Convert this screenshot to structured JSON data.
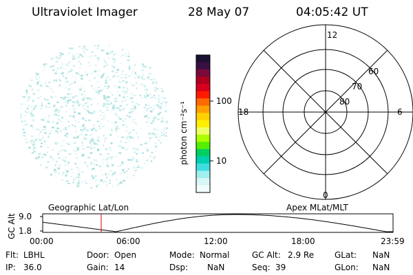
{
  "header": {
    "instrument": "Ultraviolet Imager",
    "date": "28 May 07",
    "time": "04:05:42 UT"
  },
  "colorbar": {
    "label": "photon cm⁻²s⁻¹",
    "ticks": [
      "100",
      "10"
    ],
    "colors": [
      "#1a1030",
      "#3a0f44",
      "#7a0a3a",
      "#b00020",
      "#d8001c",
      "#ff1a00",
      "#ff6a00",
      "#ffa000",
      "#ffd000",
      "#ffee00",
      "#eeff66",
      "#aaff00",
      "#55ee00",
      "#00d060",
      "#00d0b0",
      "#40dde0",
      "#a0eeee",
      "#d8f6f6",
      "#f2fcfc"
    ]
  },
  "polar_plot": {
    "mlt_labels": {
      "top": "12",
      "right": "6",
      "bottom": "0",
      "left": "18"
    },
    "lat_labels": [
      "60",
      "70",
      "80"
    ]
  },
  "timeline": {
    "ylabel": "GC Alt",
    "y_ticks": [
      "9.0",
      "1.8"
    ],
    "left_title": "Geographic Lat/Lon",
    "right_title": "Apex MLat/MLT",
    "x_ticks": [
      "00:00",
      "06:00",
      "12:00",
      "18:00",
      "23:59"
    ],
    "marker_time": "04:05:42"
  },
  "info": {
    "row1": [
      {
        "label": "Flt:",
        "value": "LBHL"
      },
      {
        "label": "Door:",
        "value": "Open"
      },
      {
        "label": "Mode:",
        "value": "Normal"
      },
      {
        "label": "GC Alt:",
        "value": "2.9 Re"
      },
      {
        "label": "GLat:",
        "value": "NaN"
      }
    ],
    "row2": [
      {
        "label": "IP:",
        "value": "36.0"
      },
      {
        "label": "Gain:",
        "value": "14"
      },
      {
        "label": "Dsp:",
        "value": "NaN"
      },
      {
        "label": "Seq:",
        "value": "39"
      },
      {
        "label": "GLon:",
        "value": "NaN"
      }
    ]
  }
}
